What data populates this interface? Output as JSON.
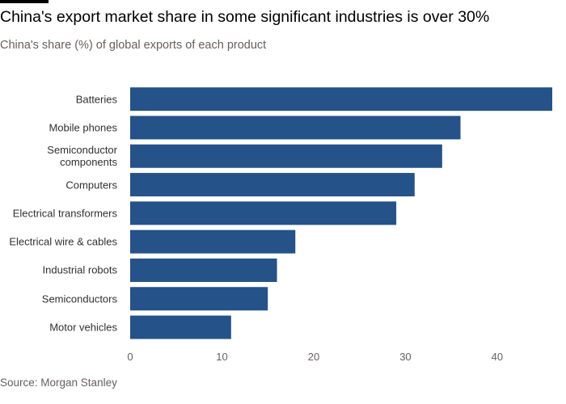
{
  "chart_data": {
    "type": "bar",
    "orientation": "horizontal",
    "title": "China's export market share in some significant industries is over 30%",
    "subtitle": "China's share (%) of global exports of each product",
    "source": "Source: Morgan Stanley",
    "categories": [
      "Batteries",
      "Mobile phones",
      "Semiconductor\ncomponents",
      "Computers",
      "Electrical transformers",
      "Electrical wire & cables",
      "Industrial robots",
      "Semiconductors",
      "Motor vehicles"
    ],
    "values": [
      46,
      36,
      34,
      31,
      29,
      18,
      16,
      15,
      11
    ],
    "color": "#245289",
    "xlim": [
      0,
      46
    ],
    "xticks": [
      0,
      10,
      20,
      30,
      40
    ],
    "grid": false
  }
}
